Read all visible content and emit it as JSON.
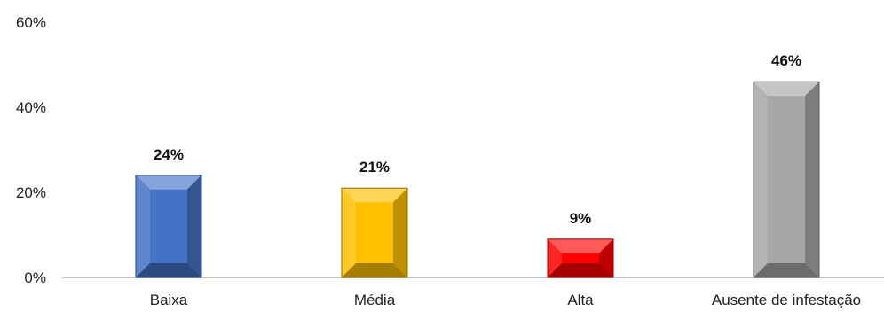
{
  "chart_data": {
    "type": "bar",
    "categories": [
      "Baixa",
      "Média",
      "Alta",
      "Ausente de infestação"
    ],
    "values": [
      24,
      21,
      9,
      46
    ],
    "data_labels": [
      "24%",
      "21%",
      "9%",
      "46%"
    ],
    "bar_colors": [
      "#4472c4",
      "#ffc000",
      "#ff0000",
      "#a6a6a6"
    ],
    "yticks": [
      0,
      20,
      40,
      60
    ],
    "ytick_labels": [
      "0%",
      "20%",
      "40%",
      "60%"
    ],
    "ylim": [
      0,
      60
    ],
    "grid": false,
    "legend": "none"
  }
}
